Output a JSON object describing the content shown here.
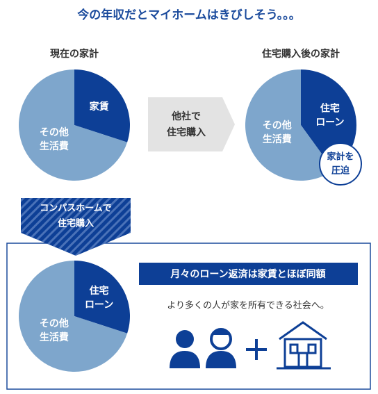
{
  "title": "今の年収だとマイホームはきびしそう。。。",
  "pies": [
    {
      "heading": "現在の家計",
      "slices": [
        {
          "lines": [
            "家賃"
          ],
          "value": 30,
          "color": "#0d3f96"
        },
        {
          "lines": [
            "その他",
            "生活費"
          ],
          "value": 70,
          "color": "#7ea6cc"
        }
      ]
    },
    {
      "heading": "住宅購入後の家計",
      "slices": [
        {
          "lines": [
            "住宅",
            "ローン"
          ],
          "value": 40,
          "color": "#0d3f96"
        },
        {
          "lines": [
            "その他",
            "生活費"
          ],
          "value": 60,
          "color": "#7ea6cc"
        }
      ]
    },
    {
      "slices": [
        {
          "lines": [
            "住宅",
            "ローン"
          ],
          "value": 30,
          "color": "#0d3f96"
        },
        {
          "lines": [
            "その他",
            "生活費"
          ],
          "value": 70,
          "color": "#7ea6cc"
        }
      ]
    }
  ],
  "other_company_arrow": [
    "他社で",
    "住宅購入"
  ],
  "badge": [
    "家計を",
    "圧迫"
  ],
  "compass_arrow": [
    "コンパスホームで",
    "住宅購入"
  ],
  "banner": "月々のローン返済は家賃とほぼ同額",
  "tagline": "より多くの人が家を所有できる社会へ。"
}
